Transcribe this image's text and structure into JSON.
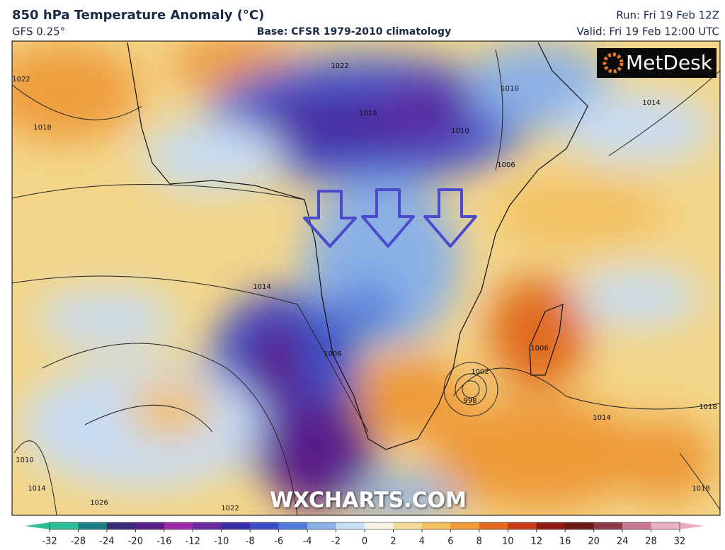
{
  "header": {
    "title": "850 hPa Temperature Anomaly (°C)",
    "model": "GFS 0.25°",
    "base": "Base: CFSR 1979-2010 climatology",
    "run": "Run: Fri 19 Feb 12Z",
    "valid": "Valid: Fri 19 Feb 12:00 UTC"
  },
  "logo": "MetDesk",
  "watermark": "WXCHARTS.COM",
  "isobars": [
    1022,
    1018,
    1022,
    1018,
    1010,
    1014,
    1010,
    1006,
    1014,
    1006,
    1006,
    1002,
    998,
    1014,
    1018,
    1010,
    1014,
    1026,
    1022,
    1018
  ],
  "colorbar": {
    "ticks": [
      -32,
      -28,
      -24,
      -20,
      -16,
      -12,
      -10,
      -8,
      -6,
      -4,
      -2,
      0,
      2,
      4,
      6,
      8,
      10,
      12,
      16,
      20,
      24,
      28,
      32
    ],
    "colors": [
      "#2fbf96",
      "#1f7f86",
      "#3a2a78",
      "#5a1f88",
      "#9a2aa8",
      "#6a2aa0",
      "#3a2fa8",
      "#3c4fc8",
      "#4f7ad8",
      "#8ab0e6",
      "#c8dcf2",
      "#f6f2e4",
      "#f4dc98",
      "#f2c060",
      "#ee9a38",
      "#e06a1e",
      "#c83a18",
      "#901a14",
      "#6a1a1a",
      "#8a3a4a",
      "#c87890",
      "#e8b0c4"
    ]
  }
}
